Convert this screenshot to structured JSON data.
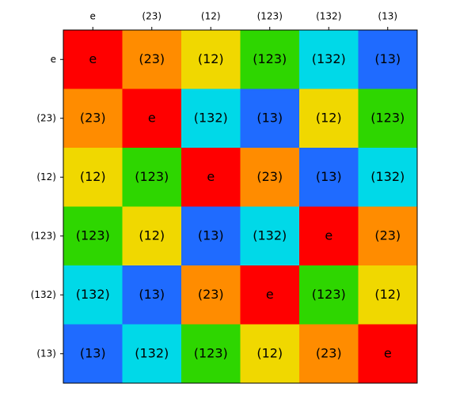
{
  "table": {
    "columns": [
      "e",
      "(23)",
      "(12)",
      "(123)",
      "(132)",
      "(13)"
    ],
    "rows": [
      "e",
      "(23)",
      "(12)",
      "(123)",
      "(132)",
      "(13)"
    ],
    "cells": [
      [
        "e",
        "(23)",
        "(12)",
        "(123)",
        "(132)",
        "(13)"
      ],
      [
        "(23)",
        "e",
        "(132)",
        "(13)",
        "(12)",
        "(123)"
      ],
      [
        "(12)",
        "(123)",
        "e",
        "(23)",
        "(13)",
        "(132)"
      ],
      [
        "(123)",
        "(12)",
        "(13)",
        "(132)",
        "e",
        "(23)"
      ],
      [
        "(132)",
        "(13)",
        "(23)",
        "e",
        "(123)",
        "(12)"
      ],
      [
        "(13)",
        "(132)",
        "(123)",
        "(12)",
        "(23)",
        "e"
      ]
    ],
    "cell_colors": [
      [
        "#ff0000",
        "#ff8c00",
        "#f0d800",
        "#2ed600",
        "#00d9e8",
        "#1f6bff"
      ],
      [
        "#ff8c00",
        "#ff0000",
        "#00d9e8",
        "#1f6bff",
        "#f0d800",
        "#2ed600"
      ],
      [
        "#f0d800",
        "#2ed600",
        "#ff0000",
        "#ff8c00",
        "#1f6bff",
        "#00d9e8"
      ],
      [
        "#2ed600",
        "#f0d800",
        "#1f6bff",
        "#00d9e8",
        "#ff0000",
        "#ff8c00"
      ],
      [
        "#00d9e8",
        "#1f6bff",
        "#ff8c00",
        "#ff0000",
        "#2ed600",
        "#f0d800"
      ],
      [
        "#1f6bff",
        "#00d9e8",
        "#2ed600",
        "#f0d800",
        "#ff8c00",
        "#ff0000"
      ]
    ]
  }
}
